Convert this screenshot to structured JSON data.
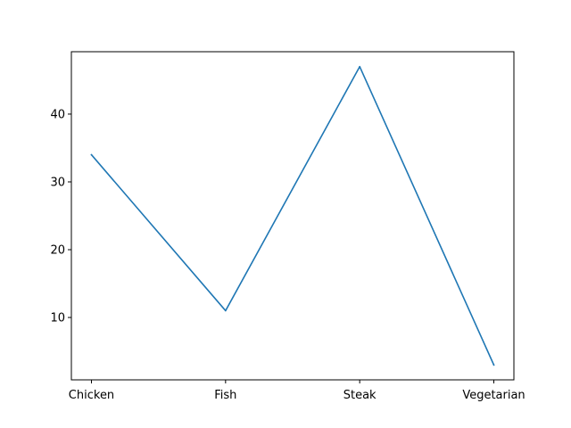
{
  "chart_data": {
    "type": "line",
    "categories": [
      "Chicken",
      "Fish",
      "Steak",
      "Vegetarian"
    ],
    "series": [
      {
        "values": [
          34,
          11,
          47,
          3
        ]
      }
    ],
    "ylim": [
      0.8,
      49.2
    ],
    "yticks": [
      10,
      20,
      30,
      40
    ],
    "title": "",
    "xlabel": "",
    "ylabel": "",
    "grid": false,
    "line_color": "#1f77b4"
  }
}
